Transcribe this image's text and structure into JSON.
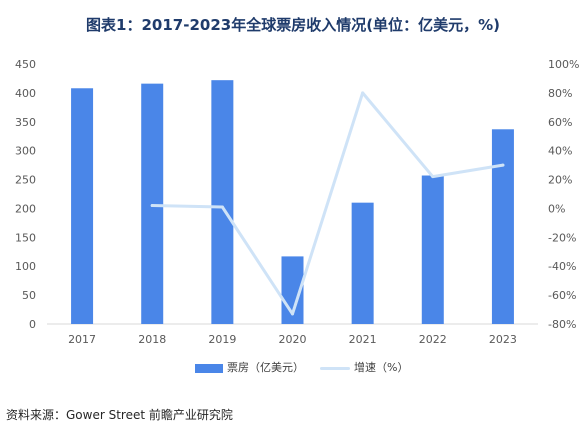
{
  "title": "图表1：2017-2023年全球票房收入情况(单位：亿美元，%)",
  "source": "资料来源：Gower Street 前瞻产业研究院",
  "chart_data": {
    "type": "bar",
    "categories": [
      "2017",
      "2018",
      "2019",
      "2020",
      "2021",
      "2022",
      "2023"
    ],
    "series": [
      {
        "name": "票房（亿美元）",
        "type": "bar",
        "axis": "left",
        "color": "#4a86e8",
        "values": [
          408,
          416,
          422,
          117,
          210,
          257,
          337
        ]
      },
      {
        "name": "增速（%）",
        "type": "line",
        "axis": "right",
        "color": "#cfe3f7",
        "values": [
          null,
          2,
          1,
          -73,
          80,
          22,
          30
        ]
      }
    ],
    "y_left": {
      "min": 0,
      "max": 450,
      "ticks": [
        0,
        50,
        100,
        150,
        200,
        250,
        300,
        350,
        400,
        450
      ]
    },
    "y_right": {
      "min": -80,
      "max": 100,
      "ticks": [
        "100%",
        "80%",
        "60%",
        "40%",
        "20%",
        "0%",
        "-20%",
        "-40%",
        "-60%",
        "-80%"
      ]
    },
    "legend_position": "bottom",
    "grid": false
  }
}
